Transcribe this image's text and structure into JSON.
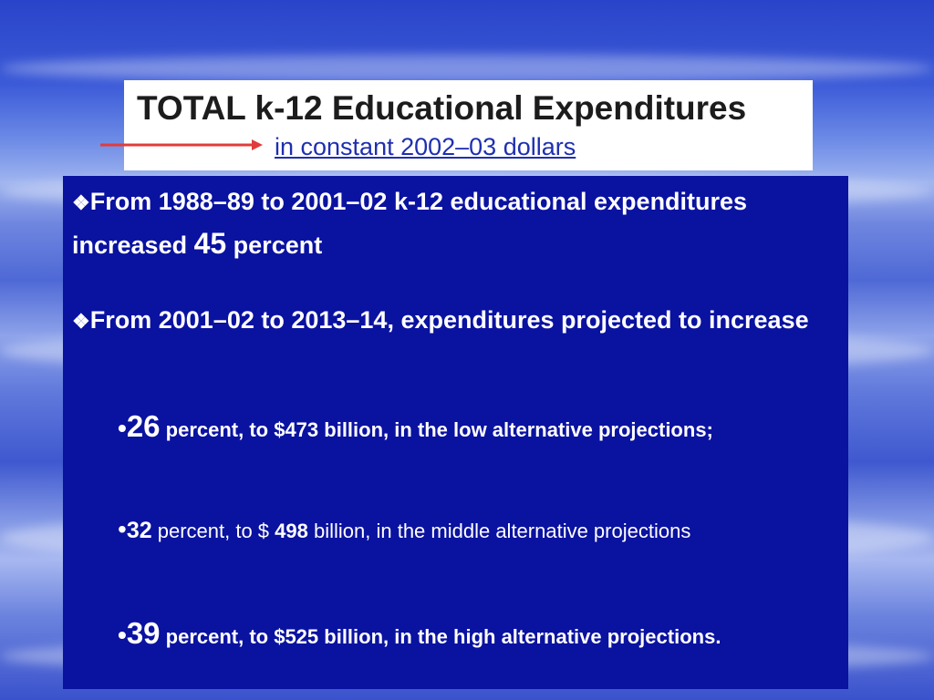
{
  "title": {
    "main": "TOTAL k-12 Educational Expenditures",
    "sub": "in constant 2002–03 dollars"
  },
  "colors": {
    "content_background": "#0a12a0",
    "arrow": "#e03c3c",
    "subtitle": "#1f2fb0"
  },
  "bullets": [
    {
      "marker": "❖",
      "text_a": "From 1988–89 to 2001–02 k-12 educational expenditures increased ",
      "emph": "45",
      "text_b": " percent"
    },
    {
      "marker": "❖",
      "text_a": "From 2001–02 to 2013–14, expenditures projected to increase"
    }
  ],
  "sub_items": [
    {
      "marker": "•",
      "num": "26",
      "text": " percent, to $473 billion, in the low alternative projections;"
    },
    {
      "marker": "•",
      "num": "32",
      "text_a": " percent, to $ ",
      "num2": "498",
      "text_b": " billion, in the middle alternative projections"
    },
    {
      "marker": "•",
      "num": "39",
      "text": " percent, to $525 billion, in the high alternative projections."
    }
  ]
}
